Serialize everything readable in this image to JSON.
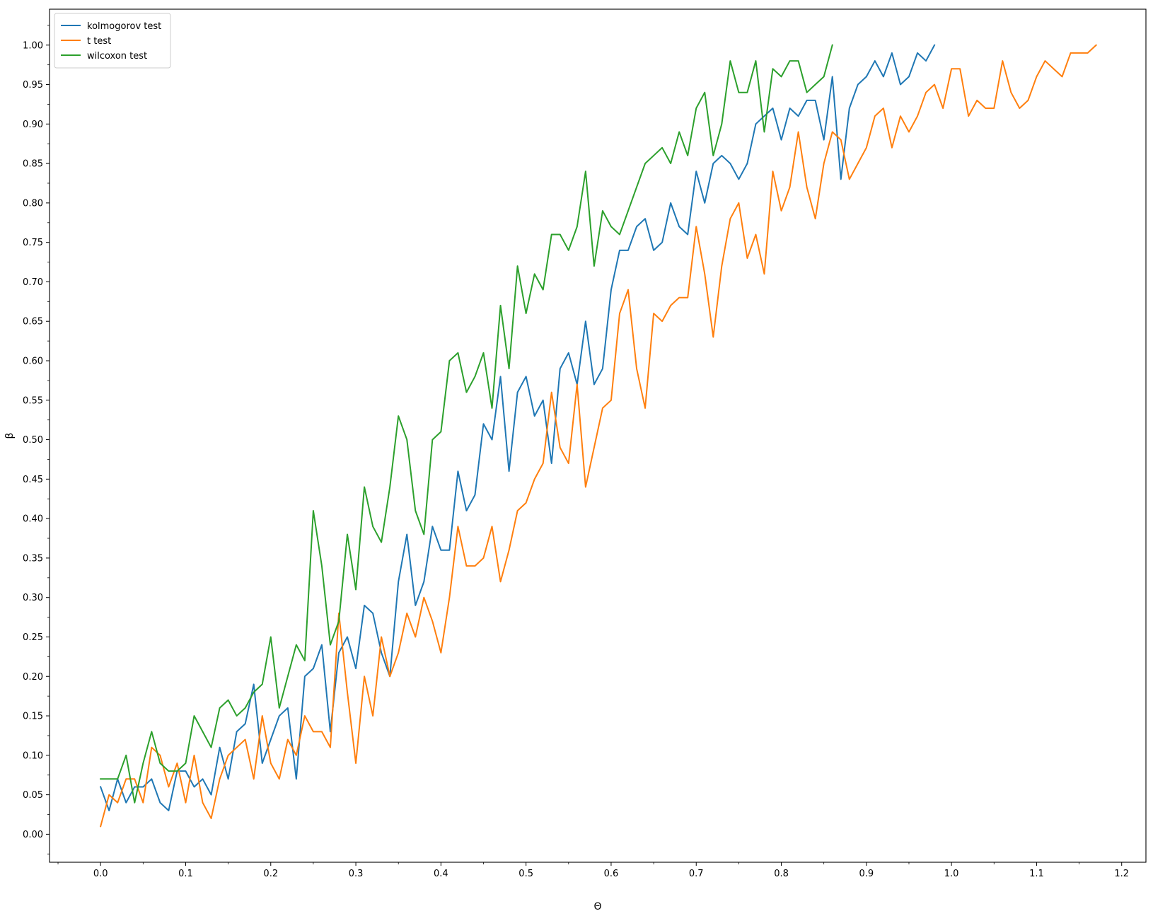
{
  "chart_data": {
    "type": "line",
    "title": "",
    "xlabel": "Θ",
    "ylabel": "β",
    "xlim": [
      -0.06,
      1.2285
    ],
    "ylim": [
      -0.0355,
      1.0455
    ],
    "x_ticks": [
      "0.0",
      "0.1",
      "0.2",
      "0.3",
      "0.4",
      "0.5",
      "0.6",
      "0.7",
      "0.8",
      "0.9",
      "1.0",
      "1.1",
      "1.2"
    ],
    "y_ticks": [
      "0.00",
      "0.05",
      "0.10",
      "0.15",
      "0.20",
      "0.25",
      "0.30",
      "0.35",
      "0.40",
      "0.45",
      "0.50",
      "0.55",
      "0.60",
      "0.65",
      "0.70",
      "0.75",
      "0.80",
      "0.85",
      "0.90",
      "0.95",
      "1.00"
    ],
    "grid": false,
    "legend_position": "top-left",
    "series": [
      {
        "name": "kolmogorov test",
        "color": "#1f77b4",
        "x_start": 0,
        "x_step": 0.01,
        "values": [
          0.06,
          0.03,
          0.07,
          0.04,
          0.06,
          0.06,
          0.07,
          0.04,
          0.03,
          0.08,
          0.08,
          0.06,
          0.07,
          0.05,
          0.11,
          0.07,
          0.13,
          0.14,
          0.19,
          0.09,
          0.12,
          0.15,
          0.16,
          0.07,
          0.2,
          0.21,
          0.24,
          0.13,
          0.23,
          0.25,
          0.21,
          0.29,
          0.28,
          0.23,
          0.2,
          0.32,
          0.38,
          0.29,
          0.32,
          0.39,
          0.36,
          0.36,
          0.46,
          0.41,
          0.43,
          0.52,
          0.5,
          0.58,
          0.46,
          0.56,
          0.58,
          0.53,
          0.55,
          0.47,
          0.59,
          0.61,
          0.57,
          0.65,
          0.57,
          0.59,
          0.69,
          0.74,
          0.74,
          0.77,
          0.78,
          0.74,
          0.75,
          0.8,
          0.77,
          0.76,
          0.84,
          0.8,
          0.85,
          0.86,
          0.85,
          0.83,
          0.85,
          0.9,
          0.91,
          0.92,
          0.88,
          0.92,
          0.91,
          0.93,
          0.93,
          0.88,
          0.96,
          0.83,
          0.92,
          0.95,
          0.96,
          0.98,
          0.96,
          0.99,
          0.95,
          0.96,
          0.99,
          0.98,
          1.0
        ]
      },
      {
        "name": "t test",
        "color": "#ff7f0e",
        "x_start": 0,
        "x_step": 0.01,
        "values": [
          0.01,
          0.05,
          0.04,
          0.07,
          0.07,
          0.04,
          0.11,
          0.1,
          0.06,
          0.09,
          0.04,
          0.1,
          0.04,
          0.02,
          0.07,
          0.1,
          0.11,
          0.12,
          0.07,
          0.15,
          0.09,
          0.07,
          0.12,
          0.1,
          0.15,
          0.13,
          0.13,
          0.11,
          0.28,
          0.18,
          0.09,
          0.2,
          0.15,
          0.25,
          0.2,
          0.23,
          0.28,
          0.25,
          0.3,
          0.27,
          0.23,
          0.3,
          0.39,
          0.34,
          0.34,
          0.35,
          0.39,
          0.32,
          0.36,
          0.41,
          0.42,
          0.45,
          0.47,
          0.56,
          0.49,
          0.47,
          0.57,
          0.44,
          0.49,
          0.54,
          0.55,
          0.66,
          0.69,
          0.59,
          0.54,
          0.66,
          0.65,
          0.67,
          0.68,
          0.68,
          0.77,
          0.71,
          0.63,
          0.72,
          0.78,
          0.8,
          0.73,
          0.76,
          0.71,
          0.84,
          0.79,
          0.82,
          0.89,
          0.82,
          0.78,
          0.85,
          0.89,
          0.88,
          0.83,
          0.85,
          0.87,
          0.91,
          0.92,
          0.87,
          0.91,
          0.89,
          0.91,
          0.94,
          0.95,
          0.92,
          0.97,
          0.97,
          0.91,
          0.93,
          0.92,
          0.92,
          0.98,
          0.94,
          0.92,
          0.93,
          0.96,
          0.98,
          0.97,
          0.96,
          0.99,
          0.99,
          0.99,
          1.0
        ]
      },
      {
        "name": "wilcoxon test",
        "color": "#2ca02c",
        "x_start": 0,
        "x_step": 0.01,
        "values": [
          0.07,
          0.07,
          0.07,
          0.1,
          0.04,
          0.09,
          0.13,
          0.09,
          0.08,
          0.08,
          0.09,
          0.15,
          0.13,
          0.11,
          0.16,
          0.17,
          0.15,
          0.16,
          0.18,
          0.19,
          0.25,
          0.16,
          0.2,
          0.24,
          0.22,
          0.41,
          0.34,
          0.24,
          0.27,
          0.38,
          0.31,
          0.44,
          0.39,
          0.37,
          0.44,
          0.53,
          0.5,
          0.41,
          0.38,
          0.5,
          0.51,
          0.6,
          0.61,
          0.56,
          0.58,
          0.61,
          0.54,
          0.67,
          0.59,
          0.72,
          0.66,
          0.71,
          0.69,
          0.76,
          0.76,
          0.74,
          0.77,
          0.84,
          0.72,
          0.79,
          0.77,
          0.76,
          0.79,
          0.82,
          0.85,
          0.86,
          0.87,
          0.85,
          0.89,
          0.86,
          0.92,
          0.94,
          0.86,
          0.9,
          0.98,
          0.94,
          0.94,
          0.98,
          0.89,
          0.97,
          0.96,
          0.98,
          0.98,
          0.94,
          0.95,
          0.96,
          1.0
        ]
      }
    ]
  }
}
